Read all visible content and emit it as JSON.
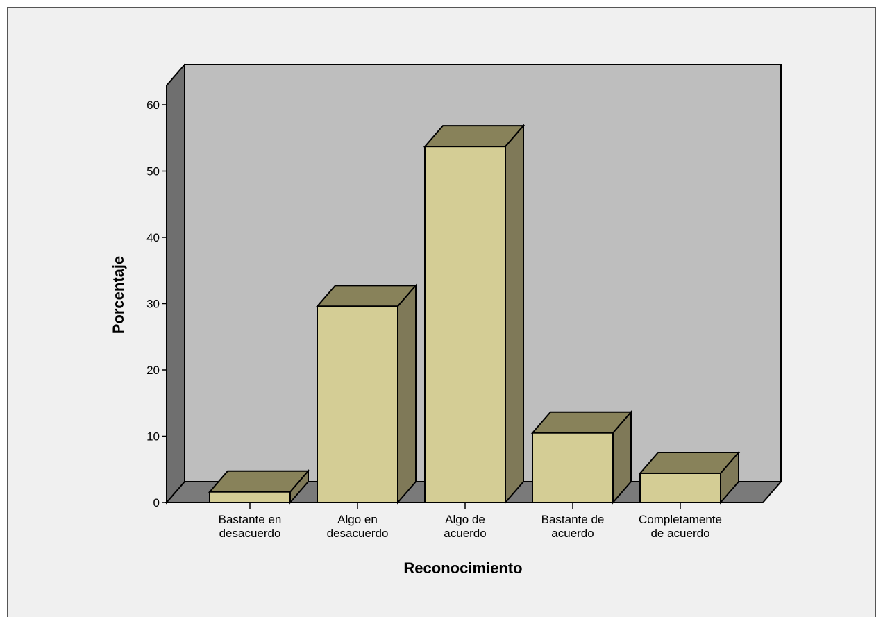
{
  "chart_data": {
    "type": "bar",
    "title": "",
    "xlabel": "Reconocimiento",
    "ylabel": "Porcentaje",
    "ylim": [
      0,
      63
    ],
    "yticks": [
      0,
      10,
      20,
      30,
      40,
      50,
      60
    ],
    "grid": false,
    "style": "3d",
    "categories": [
      [
        "Bastante en",
        "desacuerdo"
      ],
      [
        "Algo en",
        "desacuerdo"
      ],
      [
        "Algo de",
        "acuerdo"
      ],
      [
        "Bastante de",
        "acuerdo"
      ],
      [
        "Completamente",
        "de acuerdo"
      ]
    ],
    "values": [
      1.6,
      29.6,
      53.7,
      10.5,
      4.4
    ],
    "colors": {
      "bar_front": "#d4cd95",
      "bar_top": "#88825a",
      "bar_side": "#7f7958",
      "back_wall": "#bebebe",
      "side_wall": "#6f6f6f",
      "floor": "#7a7a7a",
      "panel": "#f0f0f0"
    }
  }
}
